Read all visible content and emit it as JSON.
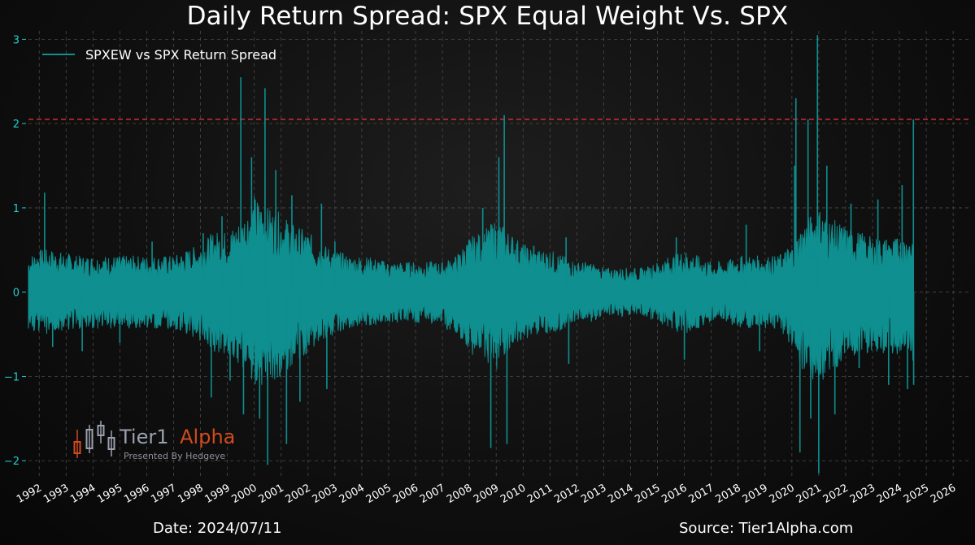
{
  "header": {
    "title": "Daily Return Spread: SPX Equal Weight Vs. SPX"
  },
  "footer": {
    "date": "Date: 2024/07/11",
    "source": "Source: Tier1Alpha.com"
  },
  "logo": {
    "name_part1": "Tier1",
    "name_part2": "Alpha",
    "subtitle": "Presented By Hedgeye",
    "color_part1": "#9aa0ad",
    "color_part2": "#d24a1e"
  },
  "colors": {
    "series": "#0f8f8f",
    "threshold": "#e03030",
    "grid": "#4a4a4a",
    "ytick": "#24c9c9"
  },
  "chart_data": {
    "type": "line",
    "title": "Daily Return Spread: SPX Equal Weight Vs. SPX",
    "xlabel": "",
    "ylabel": "",
    "xlim": [
      1991.6,
      2026.6
    ],
    "ylim": [
      -2.2,
      3.1
    ],
    "grid": true,
    "legend_position": "top-left",
    "x_ticks": [
      "1992",
      "1993",
      "1994",
      "1995",
      "1996",
      "1997",
      "1998",
      "1999",
      "2000",
      "2001",
      "2002",
      "2003",
      "2004",
      "2005",
      "2006",
      "2007",
      "2008",
      "2009",
      "2010",
      "2011",
      "2012",
      "2013",
      "2014",
      "2015",
      "2016",
      "2017",
      "2018",
      "2019",
      "2020",
      "2021",
      "2022",
      "2023",
      "2024",
      "2025",
      "2026"
    ],
    "y_ticks": [
      -2,
      -1,
      0,
      1,
      2,
      3
    ],
    "y_tick_labels": [
      "−2",
      "−1",
      "0",
      "1",
      "2",
      "3"
    ],
    "reference_lines": [
      {
        "axis": "y",
        "value": 2.05,
        "style": "dashed"
      }
    ],
    "series": [
      {
        "name": "SPXEW vs SPX Return Spread",
        "band": {
          "x": [
            1991.6,
            1992.0,
            1992.5,
            1993.0,
            1993.5,
            1994.0,
            1994.5,
            1995.0,
            1995.5,
            1996.0,
            1996.5,
            1997.0,
            1997.5,
            1998.0,
            1998.5,
            1999.0,
            1999.5,
            2000.0,
            2000.5,
            2001.0,
            2001.5,
            2002.0,
            2002.5,
            2003.0,
            2003.5,
            2004.0,
            2004.5,
            2005.0,
            2005.5,
            2006.0,
            2006.5,
            2007.0,
            2007.5,
            2008.0,
            2008.5,
            2009.0,
            2009.5,
            2010.0,
            2010.5,
            2011.0,
            2011.5,
            2012.0,
            2012.5,
            2013.0,
            2013.5,
            2014.0,
            2014.5,
            2015.0,
            2015.5,
            2016.0,
            2016.5,
            2017.0,
            2017.5,
            2018.0,
            2018.5,
            2019.0,
            2019.5,
            2020.0,
            2020.5,
            2021.0,
            2021.5,
            2022.0,
            2022.5,
            2023.0,
            2023.5,
            2024.0,
            2024.53
          ],
          "upper": [
            0.3,
            0.35,
            0.35,
            0.32,
            0.3,
            0.3,
            0.3,
            0.3,
            0.3,
            0.3,
            0.3,
            0.3,
            0.35,
            0.4,
            0.5,
            0.5,
            0.6,
            0.8,
            0.7,
            0.65,
            0.55,
            0.5,
            0.4,
            0.35,
            0.3,
            0.3,
            0.28,
            0.25,
            0.25,
            0.25,
            0.25,
            0.25,
            0.3,
            0.45,
            0.5,
            0.6,
            0.5,
            0.4,
            0.35,
            0.35,
            0.3,
            0.25,
            0.25,
            0.2,
            0.2,
            0.2,
            0.2,
            0.25,
            0.3,
            0.35,
            0.3,
            0.25,
            0.25,
            0.3,
            0.3,
            0.3,
            0.3,
            0.4,
            0.6,
            0.7,
            0.6,
            0.55,
            0.5,
            0.45,
            0.45,
            0.45,
            0.5
          ],
          "lower": [
            -0.3,
            -0.35,
            -0.35,
            -0.32,
            -0.3,
            -0.3,
            -0.3,
            -0.3,
            -0.3,
            -0.3,
            -0.3,
            -0.3,
            -0.35,
            -0.4,
            -0.5,
            -0.5,
            -0.6,
            -0.8,
            -0.75,
            -0.7,
            -0.6,
            -0.5,
            -0.4,
            -0.35,
            -0.3,
            -0.3,
            -0.28,
            -0.25,
            -0.25,
            -0.25,
            -0.25,
            -0.3,
            -0.35,
            -0.5,
            -0.55,
            -0.65,
            -0.5,
            -0.4,
            -0.35,
            -0.35,
            -0.3,
            -0.25,
            -0.25,
            -0.2,
            -0.2,
            -0.2,
            -0.2,
            -0.25,
            -0.3,
            -0.35,
            -0.3,
            -0.25,
            -0.25,
            -0.3,
            -0.3,
            -0.3,
            -0.3,
            -0.45,
            -0.7,
            -0.75,
            -0.65,
            -0.55,
            -0.5,
            -0.5,
            -0.5,
            -0.55,
            -0.6
          ]
        },
        "spikes": [
          [
            1992.2,
            1.18
          ],
          [
            1992.5,
            -0.65
          ],
          [
            1993.6,
            -0.7
          ],
          [
            1995.0,
            -0.6
          ],
          [
            1996.2,
            0.6
          ],
          [
            1998.1,
            0.7
          ],
          [
            1998.4,
            -1.25
          ],
          [
            1998.8,
            0.9
          ],
          [
            1999.1,
            -1.05
          ],
          [
            1999.5,
            2.55
          ],
          [
            1999.6,
            -1.45
          ],
          [
            1999.9,
            1.6
          ],
          [
            2000.2,
            -1.5
          ],
          [
            2000.4,
            2.42
          ],
          [
            2000.5,
            -2.05
          ],
          [
            2000.8,
            1.45
          ],
          [
            2001.2,
            -1.8
          ],
          [
            2001.4,
            1.15
          ],
          [
            2001.7,
            -1.3
          ],
          [
            2002.5,
            1.05
          ],
          [
            2002.7,
            -1.15
          ],
          [
            2003.0,
            0.6
          ],
          [
            2008.5,
            1.0
          ],
          [
            2008.8,
            -1.85
          ],
          [
            2009.1,
            1.6
          ],
          [
            2009.3,
            2.1
          ],
          [
            2009.4,
            -1.8
          ],
          [
            2010.4,
            0.55
          ],
          [
            2011.6,
            0.65
          ],
          [
            2011.7,
            -0.85
          ],
          [
            2015.7,
            0.65
          ],
          [
            2016.0,
            -0.8
          ],
          [
            2018.3,
            0.8
          ],
          [
            2018.8,
            -0.7
          ],
          [
            2020.1,
            1.5
          ],
          [
            2020.15,
            2.3
          ],
          [
            2020.3,
            -1.9
          ],
          [
            2020.6,
            2.05
          ],
          [
            2020.7,
            -1.5
          ],
          [
            2020.95,
            3.05
          ],
          [
            2021.0,
            -2.15
          ],
          [
            2021.3,
            1.5
          ],
          [
            2021.6,
            -1.45
          ],
          [
            2022.2,
            1.05
          ],
          [
            2022.5,
            -0.9
          ],
          [
            2023.2,
            1.1
          ],
          [
            2023.6,
            -1.1
          ],
          [
            2024.1,
            1.27
          ],
          [
            2024.3,
            -1.15
          ],
          [
            2024.52,
            2.05
          ],
          [
            2024.53,
            -1.1
          ]
        ]
      }
    ]
  }
}
